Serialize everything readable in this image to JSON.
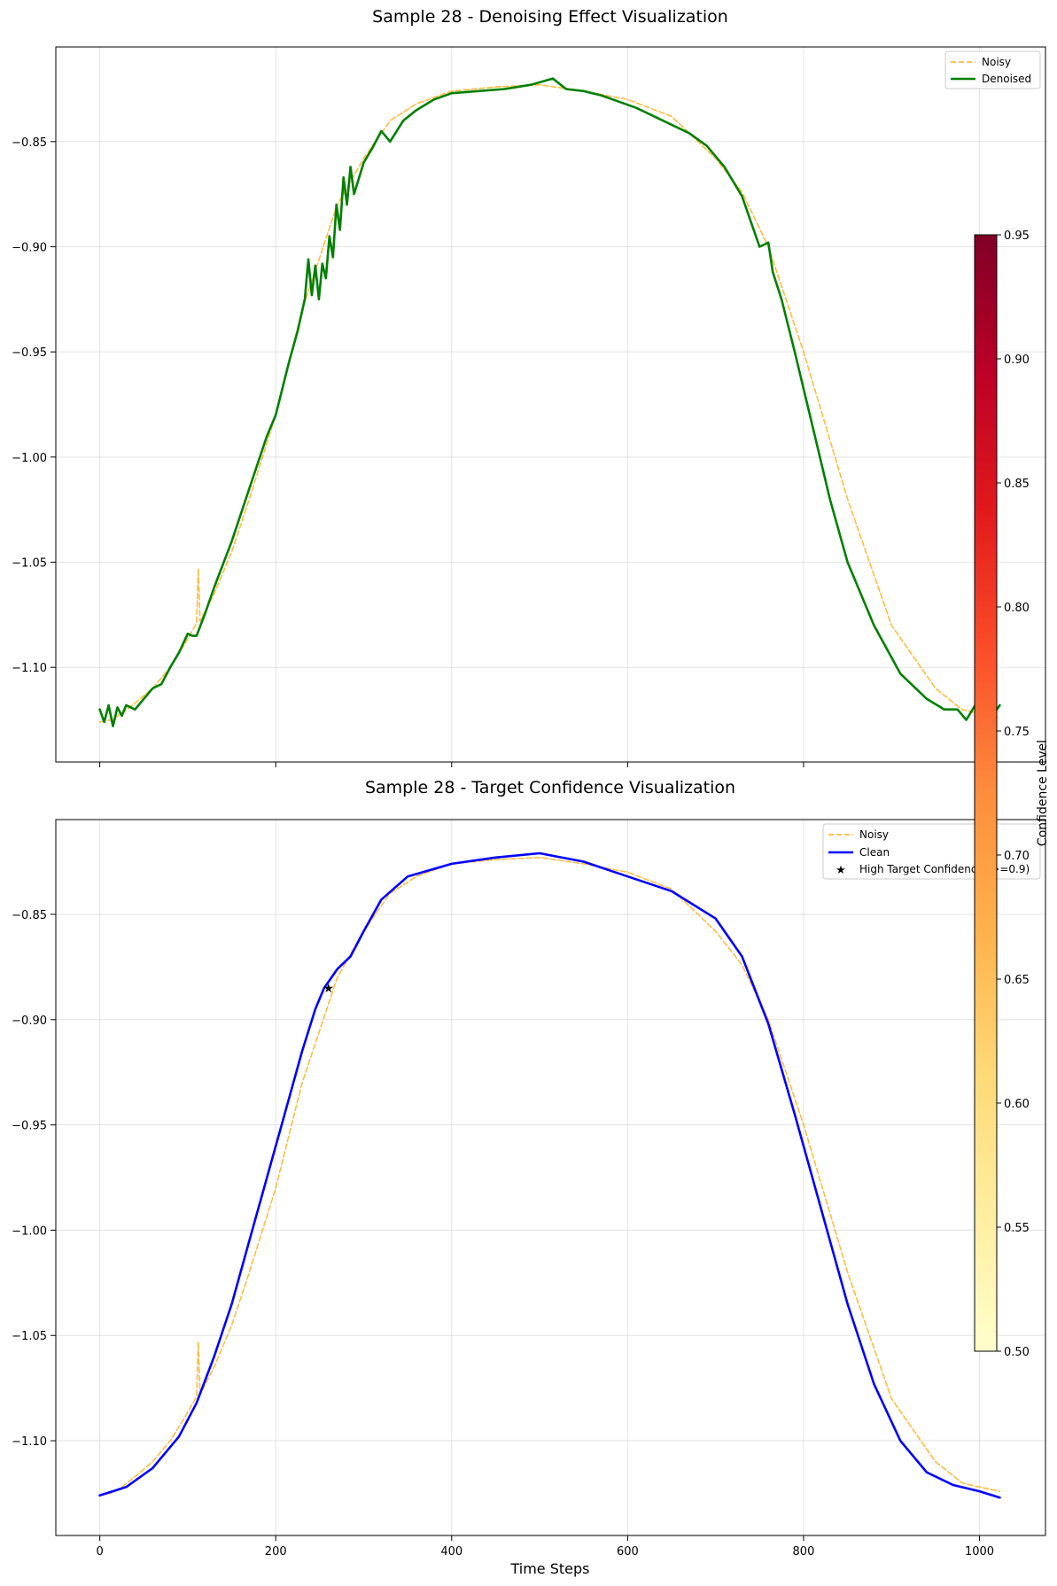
{
  "chart_data": [
    {
      "type": "line",
      "title": "Sample 28 - Denoising Effect Visualization",
      "xlabel": "",
      "ylabel": "",
      "xlim": [
        -50,
        1075
      ],
      "ylim": [
        -1.145,
        -0.805
      ],
      "x_ticks": [
        0,
        200,
        400,
        600,
        800,
        1000
      ],
      "y_ticks": [
        -0.85,
        -0.9,
        -0.95,
        -1.0,
        -1.05,
        -1.1
      ],
      "y_tick_labels": [
        "−0.85",
        "−0.90",
        "−0.95",
        "−1.00",
        "−1.05",
        "−1.10"
      ],
      "grid": true,
      "legend_position": "top-right",
      "series": [
        {
          "name": "Noisy",
          "color": "#ffa500",
          "style": "dashed",
          "x": [
            0,
            12,
            25,
            40,
            60,
            80,
            95,
            110,
            112,
            114,
            130,
            150,
            170,
            200,
            230,
            250,
            270,
            300,
            330,
            360,
            400,
            450,
            500,
            550,
            600,
            650,
            700,
            730,
            760,
            800,
            850,
            900,
            950,
            980,
            1000,
            1023
          ],
          "y": [
            -1.126,
            -1.125,
            -1.122,
            -1.117,
            -1.11,
            -1.1,
            -1.09,
            -1.079,
            -1.053,
            -1.078,
            -1.065,
            -1.045,
            -1.02,
            -0.98,
            -0.93,
            -0.905,
            -0.88,
            -0.858,
            -0.84,
            -0.832,
            -0.826,
            -0.824,
            -0.823,
            -0.826,
            -0.83,
            -0.838,
            -0.858,
            -0.874,
            -0.9,
            -0.95,
            -1.02,
            -1.08,
            -1.11,
            -1.12,
            -1.122,
            -1.124
          ]
        },
        {
          "name": "Denoised",
          "color": "#008000",
          "style": "solid",
          "x": [
            0,
            5,
            10,
            15,
            20,
            25,
            30,
            40,
            50,
            60,
            70,
            80,
            90,
            100,
            105,
            110,
            120,
            130,
            150,
            170,
            190,
            200,
            215,
            225,
            233,
            237,
            241,
            245,
            249,
            253,
            257,
            261,
            265,
            269,
            273,
            277,
            281,
            285,
            289,
            300,
            310,
            320,
            330,
            345,
            360,
            380,
            400,
            430,
            460,
            490,
            515,
            530,
            550,
            570,
            590,
            610,
            630,
            650,
            670,
            690,
            710,
            730,
            750,
            760,
            765,
            775,
            790,
            810,
            830,
            850,
            880,
            910,
            940,
            960,
            975,
            985,
            995,
            1005,
            1015,
            1023
          ],
          "y": [
            -1.12,
            -1.126,
            -1.118,
            -1.128,
            -1.119,
            -1.123,
            -1.118,
            -1.12,
            -1.115,
            -1.11,
            -1.108,
            -1.1,
            -1.093,
            -1.084,
            -1.085,
            -1.085,
            -1.074,
            -1.062,
            -1.04,
            -1.015,
            -0.99,
            -0.98,
            -0.955,
            -0.94,
            -0.925,
            -0.906,
            -0.923,
            -0.909,
            -0.925,
            -0.908,
            -0.915,
            -0.895,
            -0.905,
            -0.88,
            -0.892,
            -0.867,
            -0.88,
            -0.862,
            -0.875,
            -0.86,
            -0.853,
            -0.845,
            -0.85,
            -0.84,
            -0.835,
            -0.83,
            -0.827,
            -0.826,
            -0.825,
            -0.823,
            -0.82,
            -0.825,
            -0.826,
            -0.828,
            -0.831,
            -0.834,
            -0.838,
            -0.842,
            -0.846,
            -0.852,
            -0.862,
            -0.876,
            -0.9,
            -0.898,
            -0.912,
            -0.925,
            -0.95,
            -0.985,
            -1.02,
            -1.05,
            -1.08,
            -1.103,
            -1.115,
            -1.12,
            -1.12,
            -1.125,
            -1.118,
            -1.125,
            -1.123,
            -1.118
          ]
        }
      ]
    },
    {
      "type": "line",
      "title": "Sample 28 - Target Confidence Visualization",
      "xlabel": "Time Steps",
      "ylabel": "",
      "xlim": [
        -50,
        1075
      ],
      "ylim": [
        -1.145,
        -0.805
      ],
      "x_ticks": [
        0,
        200,
        400,
        600,
        800,
        1000
      ],
      "x_tick_labels": [
        "0",
        "200",
        "400",
        "600",
        "800",
        "1000"
      ],
      "y_ticks": [
        -0.85,
        -0.9,
        -0.95,
        -1.0,
        -1.05,
        -1.1
      ],
      "y_tick_labels": [
        "−0.85",
        "−0.90",
        "−0.95",
        "−1.00",
        "−1.05",
        "−1.10"
      ],
      "grid": true,
      "legend_position": "top-right",
      "series": [
        {
          "name": "Noisy",
          "color": "#ffa500",
          "style": "dashed",
          "x": [
            0,
            12,
            25,
            40,
            60,
            80,
            95,
            110,
            112,
            114,
            130,
            150,
            170,
            200,
            230,
            250,
            270,
            300,
            330,
            360,
            400,
            450,
            500,
            550,
            600,
            650,
            700,
            730,
            760,
            800,
            850,
            900,
            950,
            980,
            1000,
            1023
          ],
          "y": [
            -1.126,
            -1.125,
            -1.122,
            -1.117,
            -1.11,
            -1.1,
            -1.09,
            -1.079,
            -1.053,
            -1.078,
            -1.065,
            -1.045,
            -1.02,
            -0.98,
            -0.93,
            -0.905,
            -0.88,
            -0.858,
            -0.84,
            -0.832,
            -0.826,
            -0.824,
            -0.823,
            -0.826,
            -0.83,
            -0.838,
            -0.858,
            -0.874,
            -0.9,
            -0.95,
            -1.02,
            -1.08,
            -1.11,
            -1.12,
            -1.122,
            -1.124
          ]
        },
        {
          "name": "Clean",
          "color": "#0000ff",
          "style": "solid",
          "x": [
            0,
            30,
            60,
            90,
            110,
            130,
            150,
            170,
            190,
            210,
            230,
            245,
            255,
            260,
            270,
            285,
            300,
            320,
            350,
            400,
            450,
            500,
            550,
            600,
            650,
            700,
            730,
            760,
            790,
            820,
            850,
            880,
            910,
            940,
            970,
            1000,
            1023
          ],
          "y": [
            -1.126,
            -1.122,
            -1.113,
            -1.098,
            -1.082,
            -1.06,
            -1.035,
            -1.005,
            -0.975,
            -0.945,
            -0.915,
            -0.895,
            -0.885,
            -0.882,
            -0.876,
            -0.87,
            -0.858,
            -0.843,
            -0.832,
            -0.826,
            -0.823,
            -0.821,
            -0.825,
            -0.832,
            -0.839,
            -0.852,
            -0.87,
            -0.902,
            -0.945,
            -0.99,
            -1.035,
            -1.073,
            -1.1,
            -1.115,
            -1.121,
            -1.124,
            -1.127
          ]
        }
      ],
      "markers": {
        "name": "High Target Confidence (>=0.9)",
        "x": [
          260
        ],
        "y": [
          -0.885
        ],
        "color": "#000000"
      }
    }
  ],
  "colorbar": {
    "label": "Confidence Level",
    "min": 0.5,
    "max": 0.95,
    "ticks": [
      "0.50",
      "0.55",
      "0.60",
      "0.65",
      "0.70",
      "0.75",
      "0.80",
      "0.85",
      "0.90",
      "0.95"
    ],
    "colors": [
      "#ffffcc",
      "#ffeda0",
      "#fed976",
      "#feb24c",
      "#fd8d3c",
      "#fc4e2a",
      "#e31a1c",
      "#bd0026",
      "#800026"
    ]
  }
}
